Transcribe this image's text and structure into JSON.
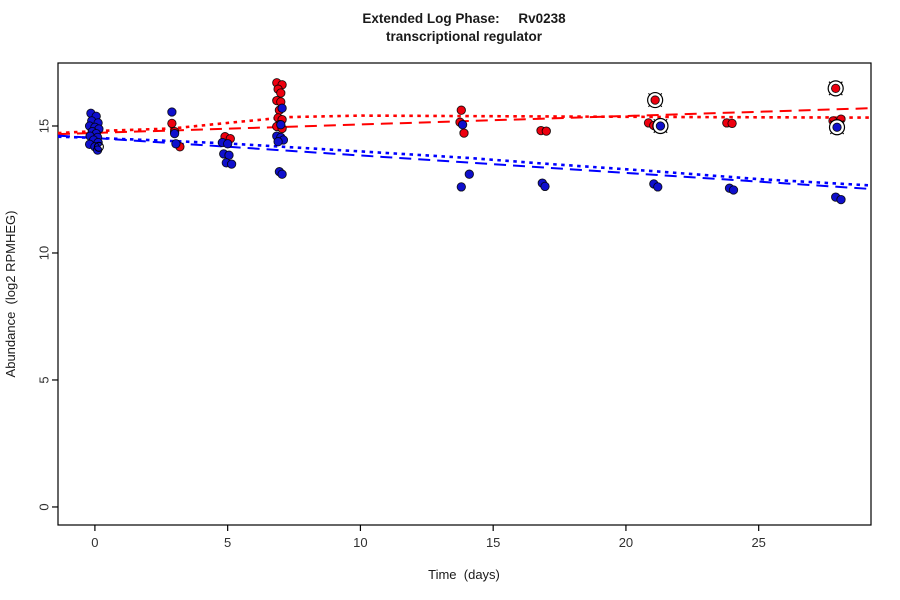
{
  "title": {
    "line1": "Extended Log Phase:     Rv0238",
    "line2": "transcriptional regulator"
  },
  "colors": {
    "point_red": "#ee000f",
    "point_blue": "#0f0fcd",
    "line_red": "#ff0000",
    "line_blue": "#0000ff",
    "point_outline": "#000000",
    "flag_marker": "#000000"
  },
  "chart_data": {
    "type": "scatter",
    "title": "Extended Log Phase: Rv0238 transcriptional regulator",
    "xlabel": "Time  (days)",
    "ylabel": "Abundance  (log2 RPMHEG)",
    "xlim": [
      -1.39,
      29.23
    ],
    "ylim": [
      -0.71,
      17.48
    ],
    "xticks": [
      0,
      5,
      10,
      15,
      20,
      25
    ],
    "yticks": [
      0,
      5,
      10,
      15
    ],
    "grid": false,
    "legend": "none",
    "series": [
      {
        "name": "red-condition",
        "color_key": "point_red",
        "points": [
          [
            -0.1,
            14.85
          ],
          [
            0.0,
            14.6
          ],
          [
            -0.05,
            14.3
          ],
          [
            2.9,
            15.1
          ],
          [
            3.0,
            14.78
          ],
          [
            3.2,
            14.18
          ],
          [
            4.9,
            14.58
          ],
          [
            5.1,
            14.5
          ],
          [
            6.85,
            16.7
          ],
          [
            7.05,
            16.62
          ],
          [
            6.9,
            16.45
          ],
          [
            7.0,
            16.3
          ],
          [
            6.85,
            16.0
          ],
          [
            7.0,
            15.95
          ],
          [
            6.95,
            15.62
          ],
          [
            6.9,
            15.32
          ],
          [
            7.05,
            15.25
          ],
          [
            6.95,
            15.05
          ],
          [
            6.85,
            14.98
          ],
          [
            7.05,
            14.9
          ],
          [
            13.8,
            15.62
          ],
          [
            13.75,
            15.15
          ],
          [
            13.9,
            14.72
          ],
          [
            16.8,
            14.82
          ],
          [
            17.0,
            14.8
          ],
          [
            20.85,
            15.12
          ],
          [
            21.05,
            15.02
          ],
          [
            23.8,
            15.12
          ],
          [
            24.0,
            15.1
          ],
          [
            27.8,
            15.2
          ],
          [
            28.1,
            15.27
          ]
        ]
      },
      {
        "name": "blue-condition",
        "color_key": "point_blue",
        "points": [
          [
            -0.15,
            15.5
          ],
          [
            0.05,
            15.38
          ],
          [
            -0.12,
            15.2
          ],
          [
            0.12,
            15.12
          ],
          [
            -0.2,
            15.0
          ],
          [
            0.0,
            14.95
          ],
          [
            0.15,
            14.88
          ],
          [
            -0.1,
            14.78
          ],
          [
            0.05,
            14.7
          ],
          [
            -0.18,
            14.6
          ],
          [
            0.1,
            14.55
          ],
          [
            -0.05,
            14.45
          ],
          [
            0.12,
            14.35
          ],
          [
            -0.2,
            14.28
          ],
          [
            0.0,
            14.18
          ],
          [
            0.1,
            14.05
          ],
          [
            2.9,
            15.55
          ],
          [
            3.0,
            14.7
          ],
          [
            3.05,
            14.3
          ],
          [
            4.8,
            14.35
          ],
          [
            5.0,
            14.3
          ],
          [
            4.85,
            13.9
          ],
          [
            5.05,
            13.85
          ],
          [
            4.95,
            13.55
          ],
          [
            5.15,
            13.5
          ],
          [
            7.05,
            15.7
          ],
          [
            7.0,
            15.05
          ],
          [
            6.85,
            14.6
          ],
          [
            7.0,
            14.55
          ],
          [
            7.1,
            14.45
          ],
          [
            6.9,
            14.38
          ],
          [
            6.95,
            13.2
          ],
          [
            7.05,
            13.1
          ],
          [
            13.85,
            15.05
          ],
          [
            14.1,
            13.1
          ],
          [
            13.8,
            12.6
          ],
          [
            16.85,
            12.75
          ],
          [
            16.95,
            12.62
          ],
          [
            21.05,
            12.72
          ],
          [
            21.2,
            12.6
          ],
          [
            23.9,
            12.55
          ],
          [
            24.05,
            12.48
          ],
          [
            27.9,
            12.2
          ],
          [
            28.1,
            12.1
          ]
        ]
      }
    ],
    "flagged_points": [
      {
        "series": "red-condition",
        "x": 21.1,
        "y": 16.02
      },
      {
        "series": "red-condition",
        "x": 27.9,
        "y": 16.48
      },
      {
        "series": "blue-condition",
        "x": 21.3,
        "y": 15.0
      },
      {
        "series": "blue-condition",
        "x": 27.95,
        "y": 14.95
      }
    ],
    "open_circle_points": [
      [
        0.15,
        14.18
      ]
    ],
    "trend_lines": [
      {
        "name": "red-linear-fit",
        "color_key": "line_red",
        "dash": "long",
        "points": [
          [
            -1.39,
            14.68
          ],
          [
            29.23,
            15.7
          ]
        ]
      },
      {
        "name": "red-smooth-fit",
        "color_key": "line_red",
        "dash": "dot",
        "points": [
          [
            -1.39,
            14.72
          ],
          [
            0.0,
            14.8
          ],
          [
            2.9,
            14.9
          ],
          [
            5.0,
            15.12
          ],
          [
            7.3,
            15.35
          ],
          [
            10.0,
            15.41
          ],
          [
            14.1,
            15.39
          ],
          [
            18.3,
            15.37
          ],
          [
            22.8,
            15.35
          ],
          [
            29.2,
            15.33
          ]
        ]
      },
      {
        "name": "blue-linear-fit",
        "color_key": "line_blue",
        "dash": "long",
        "points": [
          [
            -1.39,
            14.62
          ],
          [
            29.23,
            12.52
          ]
        ]
      },
      {
        "name": "blue-smooth-fit",
        "color_key": "line_blue",
        "dash": "dot",
        "points": [
          [
            -1.39,
            14.58
          ],
          [
            0.0,
            14.53
          ],
          [
            2.9,
            14.41
          ],
          [
            5.0,
            14.31
          ],
          [
            7.3,
            14.17
          ],
          [
            10.0,
            14.0
          ],
          [
            14.1,
            13.74
          ],
          [
            16.9,
            13.52
          ],
          [
            20.9,
            13.23
          ],
          [
            25.0,
            12.91
          ],
          [
            29.2,
            12.66
          ]
        ]
      }
    ]
  }
}
